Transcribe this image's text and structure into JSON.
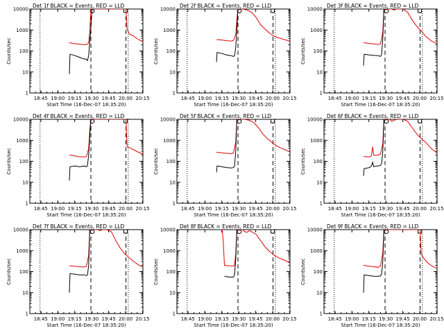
{
  "chart_data": {
    "type": "line",
    "xlabel": "Start Time (16-Dec-07 18:35:20)",
    "ylabel": "Counts/sec",
    "x_tick_labels": [
      "18:45",
      "19:00",
      "19:15",
      "19:30",
      "19:45",
      "20:00",
      "20:15"
    ],
    "y_tick_labels": [
      "1",
      "10",
      "100",
      "1000",
      "10000"
    ],
    "y_scale": "log",
    "ylim": [
      1,
      10000
    ],
    "xlim_minutes": [
      0,
      100
    ],
    "vertical_lines": {
      "dotted": [
        9,
        87
      ],
      "dashed": [
        54,
        85
      ]
    },
    "panels": [
      {
        "id": "det1",
        "title": "Det 1f BLACK = Events, RED = LLD",
        "black": [
          [
            35,
            8
          ],
          [
            35.5,
            70
          ],
          [
            38,
            65
          ],
          [
            42,
            55
          ],
          [
            46,
            45
          ],
          [
            50,
            40
          ],
          [
            51,
            35
          ],
          [
            52,
            60
          ],
          [
            53,
            300
          ],
          [
            54,
            1200
          ],
          [
            55,
            10000
          ]
        ],
        "red": [
          [
            35,
            250
          ],
          [
            38,
            230
          ],
          [
            42,
            215
          ],
          [
            46,
            205
          ],
          [
            50,
            200
          ],
          [
            52,
            240
          ],
          [
            53,
            800
          ],
          [
            54,
            10000
          ],
          [
            55,
            10000
          ],
          [
            85,
            10000
          ],
          [
            86,
            1100
          ],
          [
            88,
            650
          ],
          [
            92,
            500
          ],
          [
            96,
            350
          ],
          [
            100,
            280
          ]
        ]
      },
      {
        "id": "det2",
        "title": "Det 2f BLACK = Events, RED = LLD",
        "black": [
          [
            35,
            30
          ],
          [
            35.5,
            85
          ],
          [
            40,
            75
          ],
          [
            44,
            65
          ],
          [
            48,
            60
          ],
          [
            50,
            55
          ],
          [
            51,
            60
          ],
          [
            52,
            150
          ],
          [
            53,
            1000
          ],
          [
            54,
            10000
          ]
        ],
        "red": [
          [
            35,
            350
          ],
          [
            40,
            330
          ],
          [
            44,
            310
          ],
          [
            48,
            300
          ],
          [
            50,
            320
          ],
          [
            52,
            600
          ],
          [
            53,
            3000
          ],
          [
            54,
            10000
          ],
          [
            58,
            10000
          ],
          [
            62,
            9000
          ],
          [
            66,
            7000
          ],
          [
            70,
            4000
          ],
          [
            74,
            1800
          ],
          [
            78,
            1100
          ],
          [
            82,
            700
          ],
          [
            86,
            500
          ],
          [
            90,
            420
          ],
          [
            95,
            350
          ],
          [
            100,
            290
          ]
        ]
      },
      {
        "id": "det3",
        "title": "Det 3f BLACK = Events, RED = LLD",
        "black": [
          [
            35,
            20
          ],
          [
            35.5,
            70
          ],
          [
            40,
            65
          ],
          [
            44,
            62
          ],
          [
            48,
            60
          ],
          [
            50,
            55
          ],
          [
            51,
            70
          ],
          [
            52,
            400
          ],
          [
            53,
            10000
          ]
        ],
        "red": [
          [
            35,
            250
          ],
          [
            40,
            230
          ],
          [
            44,
            215
          ],
          [
            48,
            205
          ],
          [
            50,
            220
          ],
          [
            52,
            800
          ],
          [
            53,
            10000
          ],
          [
            60,
            10000
          ],
          [
            62,
            9000
          ],
          [
            64,
            10000
          ],
          [
            70,
            10000
          ],
          [
            74,
            7000
          ],
          [
            78,
            3000
          ],
          [
            82,
            1500
          ],
          [
            86,
            900
          ],
          [
            90,
            500
          ],
          [
            95,
            300
          ],
          [
            100,
            220
          ]
        ]
      },
      {
        "id": "det4",
        "title": "Det 4f BLACK = Events, RED = LLD",
        "black": [
          [
            35,
            12
          ],
          [
            35.5,
            55
          ],
          [
            40,
            60
          ],
          [
            44,
            55
          ],
          [
            48,
            60
          ],
          [
            50,
            55
          ],
          [
            51,
            65
          ],
          [
            52,
            200
          ],
          [
            53,
            1500
          ],
          [
            54,
            10000
          ]
        ],
        "red": [
          [
            35,
            200
          ],
          [
            38,
            190
          ],
          [
            42,
            170
          ],
          [
            46,
            160
          ],
          [
            50,
            165
          ],
          [
            52,
            400
          ],
          [
            53,
            3000
          ],
          [
            54,
            10000
          ],
          [
            85,
            10000
          ],
          [
            86,
            500
          ],
          [
            88,
            450
          ],
          [
            92,
            350
          ],
          [
            96,
            270
          ],
          [
            100,
            220
          ]
        ]
      },
      {
        "id": "det5",
        "title": "Det 5f BLACK = Events, RED = LLD",
        "black": [
          [
            35,
            30
          ],
          [
            35.5,
            60
          ],
          [
            40,
            55
          ],
          [
            44,
            50
          ],
          [
            48,
            48
          ],
          [
            50,
            50
          ],
          [
            51,
            60
          ],
          [
            52,
            300
          ],
          [
            53,
            10000
          ]
        ],
        "red": [
          [
            35,
            270
          ],
          [
            40,
            255
          ],
          [
            44,
            240
          ],
          [
            48,
            230
          ],
          [
            50,
            250
          ],
          [
            52,
            800
          ],
          [
            53,
            10000
          ],
          [
            60,
            10000
          ],
          [
            64,
            9000
          ],
          [
            68,
            7000
          ],
          [
            72,
            4000
          ],
          [
            76,
            2000
          ],
          [
            80,
            1200
          ],
          [
            84,
            800
          ],
          [
            88,
            550
          ],
          [
            92,
            420
          ],
          [
            96,
            350
          ],
          [
            100,
            280
          ]
        ]
      },
      {
        "id": "det6",
        "title": "Det 6f BLACK = Events, RED = LLD",
        "black": [
          [
            35,
            20
          ],
          [
            35.5,
            45
          ],
          [
            40,
            50
          ],
          [
            42,
            60
          ],
          [
            43,
            90
          ],
          [
            44,
            55
          ],
          [
            46,
            60
          ],
          [
            48,
            60
          ],
          [
            50,
            65
          ],
          [
            51,
            80
          ],
          [
            52,
            300
          ],
          [
            53,
            10000
          ]
        ],
        "red": [
          [
            35,
            170
          ],
          [
            40,
            160
          ],
          [
            42,
            180
          ],
          [
            43,
            500
          ],
          [
            44,
            200
          ],
          [
            46,
            190
          ],
          [
            48,
            200
          ],
          [
            50,
            220
          ],
          [
            52,
            700
          ],
          [
            53,
            10000
          ],
          [
            58,
            10000
          ],
          [
            60,
            8000
          ],
          [
            62,
            9000
          ],
          [
            64,
            10000
          ],
          [
            70,
            10000
          ],
          [
            74,
            8000
          ],
          [
            78,
            4000
          ],
          [
            82,
            2000
          ],
          [
            86,
            1200
          ],
          [
            90,
            800
          ],
          [
            95,
            400
          ],
          [
            100,
            250
          ]
        ]
      },
      {
        "id": "det7",
        "title": "Det 7f BLACK = Events, RED = LLD",
        "black": [
          [
            35,
            10
          ],
          [
            35.5,
            80
          ],
          [
            40,
            75
          ],
          [
            44,
            70
          ],
          [
            48,
            70
          ],
          [
            50,
            65
          ],
          [
            51,
            70
          ],
          [
            52,
            200
          ],
          [
            53,
            10000
          ]
        ],
        "red": [
          [
            35,
            190
          ],
          [
            40,
            180
          ],
          [
            44,
            170
          ],
          [
            48,
            165
          ],
          [
            50,
            175
          ],
          [
            52,
            600
          ],
          [
            53,
            10000
          ],
          [
            60,
            10000
          ],
          [
            62,
            9000
          ],
          [
            64,
            10000
          ],
          [
            68,
            10000
          ],
          [
            72,
            8000
          ],
          [
            76,
            3000
          ],
          [
            80,
            1300
          ],
          [
            84,
            700
          ],
          [
            88,
            450
          ],
          [
            92,
            300
          ],
          [
            96,
            210
          ],
          [
            100,
            160
          ]
        ]
      },
      {
        "id": "det8",
        "title": "Det 8f BLACK = Events, RED = LLD",
        "black": [
          [
            42,
            60
          ],
          [
            46,
            55
          ],
          [
            50,
            55
          ],
          [
            51,
            70
          ],
          [
            52,
            400
          ],
          [
            53,
            10000
          ]
        ],
        "red": [
          [
            38,
            10000
          ],
          [
            40,
            10000
          ],
          [
            41,
            3000
          ],
          [
            42,
            200
          ],
          [
            46,
            190
          ],
          [
            50,
            185
          ],
          [
            51,
            200
          ],
          [
            52,
            700
          ],
          [
            53,
            10000
          ],
          [
            58,
            10000
          ],
          [
            60,
            8000
          ],
          [
            62,
            7500
          ],
          [
            64,
            9000
          ],
          [
            66,
            8000
          ],
          [
            70,
            6000
          ],
          [
            74,
            3000
          ],
          [
            78,
            1500
          ],
          [
            82,
            900
          ],
          [
            86,
            600
          ],
          [
            90,
            450
          ],
          [
            95,
            350
          ],
          [
            100,
            260
          ]
        ]
      },
      {
        "id": "det9",
        "title": "Det 9f BLACK = Events, RED = LLD",
        "black": [
          [
            35,
            10
          ],
          [
            35.5,
            70
          ],
          [
            40,
            65
          ],
          [
            44,
            60
          ],
          [
            48,
            60
          ],
          [
            50,
            62
          ],
          [
            51,
            80
          ],
          [
            52,
            300
          ],
          [
            53,
            10000
          ]
        ],
        "red": [
          [
            35,
            200
          ],
          [
            40,
            180
          ],
          [
            44,
            170
          ],
          [
            48,
            160
          ],
          [
            50,
            190
          ],
          [
            52,
            800
          ],
          [
            53,
            10000
          ],
          [
            85,
            10000
          ],
          [
            86,
            700
          ],
          [
            88,
            450
          ],
          [
            92,
            250
          ],
          [
            96,
            180
          ],
          [
            100,
            140
          ]
        ]
      }
    ]
  }
}
